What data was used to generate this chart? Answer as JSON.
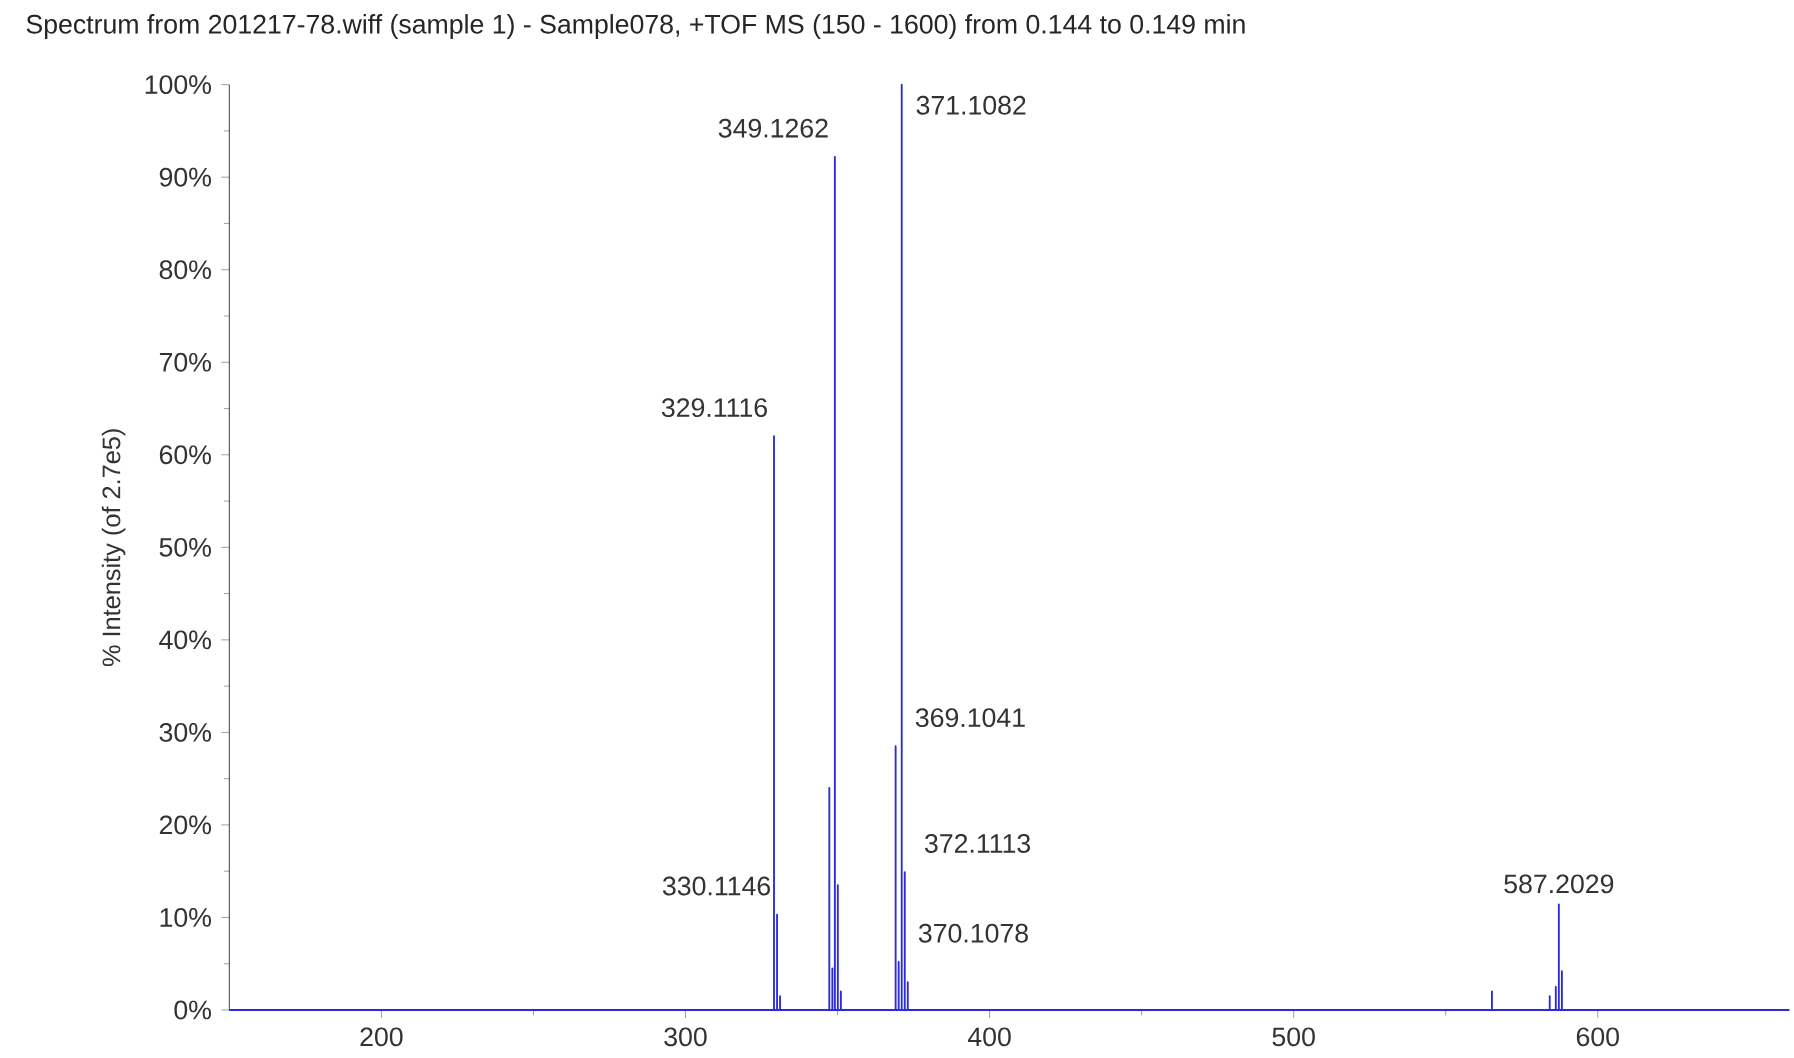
{
  "chart_data": {
    "type": "line",
    "title": "Spectrum from 201217-78.wiff (sample 1) - Sample078, +TOF MS (150 - 1600) from 0.144 to 0.149 min",
    "ylabel": "% Intensity (of 2.7e5)",
    "x": [
      150,
      329.1116,
      329.1116,
      329.1116,
      330.1146,
      330.1146,
      330.1146,
      331.1,
      331.1,
      331.1,
      347.3,
      347.3,
      347.3,
      348.3,
      348.3,
      348.3,
      349.1262,
      349.1262,
      349.1262,
      350.1,
      350.1,
      350.1,
      351.1,
      351.1,
      351.1,
      369.1041,
      369.1041,
      369.1041,
      370.1078,
      370.1078,
      370.1078,
      371.1082,
      371.1082,
      371.1082,
      372.1113,
      372.1113,
      372.1113,
      373.1,
      373.1,
      373.1,
      565.2,
      565.2,
      565.2,
      584.2,
      584.2,
      584.2,
      586.2,
      586.2,
      586.2,
      587.2029,
      587.2029,
      587.2029,
      588.2,
      588.2,
      588.2,
      663
    ],
    "values": [
      0,
      0,
      62,
      0,
      0,
      10.3,
      0,
      0,
      1.5,
      0,
      0,
      24,
      0,
      0,
      4.5,
      0,
      0,
      92.2,
      0,
      0,
      13.5,
      0,
      0,
      2,
      0,
      0,
      28.5,
      0,
      0,
      5.2,
      0,
      0,
      100,
      0,
      0,
      14.9,
      0,
      0,
      3,
      0,
      0,
      2,
      0,
      0,
      1.5,
      0,
      0,
      2.5,
      0,
      0,
      11.4,
      0,
      0,
      4.2,
      0,
      0
    ],
    "color": "#2b2bd9",
    "line_style": "solid",
    "marker": "none",
    "xlim": [
      150,
      663
    ],
    "xticks": [
      200,
      300,
      400,
      500,
      600
    ],
    "ylim": [
      0,
      100
    ],
    "yticks": [
      {
        "value": 0,
        "label": "0%"
      },
      {
        "value": 10,
        "label": "10%"
      },
      {
        "value": 20,
        "label": "20%"
      },
      {
        "value": 30,
        "label": "30%"
      },
      {
        "value": 40,
        "label": "40%"
      },
      {
        "value": 50,
        "label": "50%"
      },
      {
        "value": 60,
        "label": "60%"
      },
      {
        "value": 70,
        "label": "70%"
      },
      {
        "value": 80,
        "label": "80%"
      },
      {
        "value": 90,
        "label": "90%"
      },
      {
        "value": 100,
        "label": "100%"
      }
    ],
    "annotations": [
      {
        "text": "329.1116",
        "x": 329.1116,
        "y": 62
      },
      {
        "text": "330.1146",
        "x": 330.1146,
        "y": 10.3
      },
      {
        "text": "349.1262",
        "x": 349.1262,
        "y": 92.2
      },
      {
        "text": "369.1041",
        "x": 369.1041,
        "y": 28.5
      },
      {
        "text": "370.1078",
        "x": 370.1078,
        "y": 5.2
      },
      {
        "text": "371.1082",
        "x": 371.1082,
        "y": 100
      },
      {
        "text": "372.1113",
        "x": 372.1113,
        "y": 14.9
      },
      {
        "text": "587.2029",
        "x": 587.2029,
        "y": 11.4
      }
    ]
  }
}
